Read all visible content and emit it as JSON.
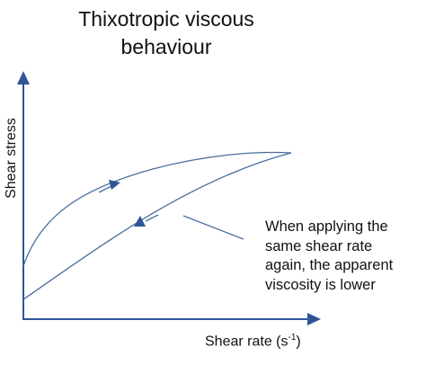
{
  "title": {
    "line1": "Thixotropic viscous",
    "line2": "behaviour"
  },
  "axes": {
    "x_label": "Shear rate (s",
    "x_label_exponent": "-1",
    "x_label_close": ")",
    "y_label": "Shear stress"
  },
  "annotation": {
    "line1": "When applying the",
    "line2": "same shear rate",
    "line3": "again, the apparent",
    "line4": "viscosity is lower"
  },
  "colors": {
    "curve": "#4a6e9c",
    "axis": "#2f5597"
  }
}
